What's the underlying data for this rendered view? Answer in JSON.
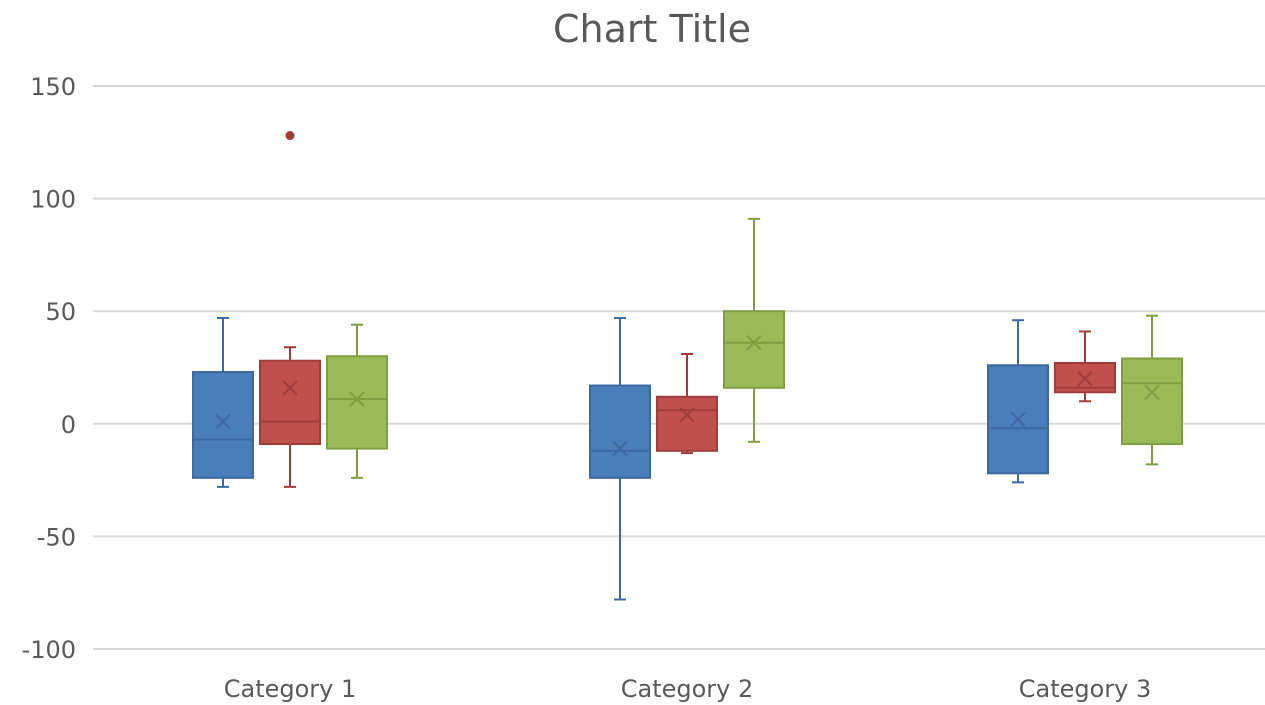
{
  "chart_data": {
    "type": "box",
    "title": "Chart Title",
    "xlabel": "",
    "ylabel": "",
    "categories": [
      "Category 1",
      "Category 2",
      "Category 3"
    ],
    "ylim": [
      -100,
      150
    ],
    "yticks": [
      150,
      100,
      50,
      0,
      -50,
      -100
    ],
    "grid": true,
    "legend": "none",
    "series": [
      {
        "color": "#4a7ebb",
        "stroke": "#3d68a0",
        "boxes": [
          {
            "min": -28,
            "q1": -24,
            "median": -7,
            "q3": 23,
            "max": 47,
            "mean": 1,
            "outliers": []
          },
          {
            "min": -78,
            "q1": -24,
            "median": -12,
            "q3": 17,
            "max": 47,
            "mean": -11,
            "outliers": []
          },
          {
            "min": -26,
            "q1": -22,
            "median": -2,
            "q3": 26,
            "max": 46,
            "mean": 2,
            "outliers": []
          }
        ]
      },
      {
        "color": "#c0504d",
        "stroke": "#a03c39",
        "boxes": [
          {
            "min": -28,
            "q1": -9,
            "median": 1,
            "q3": 28,
            "max": 34,
            "mean": 16,
            "outliers": [
              128
            ]
          },
          {
            "min": -13,
            "q1": -12,
            "median": 6,
            "q3": 12,
            "max": 31,
            "mean": 4,
            "outliers": []
          },
          {
            "min": 10,
            "q1": 14,
            "median": 16,
            "q3": 27,
            "max": 41,
            "mean": 20,
            "outliers": []
          }
        ]
      },
      {
        "color": "#9bbb59",
        "stroke": "#7f9e42",
        "boxes": [
          {
            "min": -24,
            "q1": -11,
            "median": 11,
            "q3": 30,
            "max": 44,
            "mean": 11,
            "outliers": []
          },
          {
            "min": -8,
            "q1": 16,
            "median": 36,
            "q3": 50,
            "max": 91,
            "mean": 36,
            "outliers": []
          },
          {
            "min": -18,
            "q1": -9,
            "median": 18,
            "q3": 29,
            "max": 48,
            "mean": 14,
            "outliers": []
          }
        ]
      }
    ]
  }
}
